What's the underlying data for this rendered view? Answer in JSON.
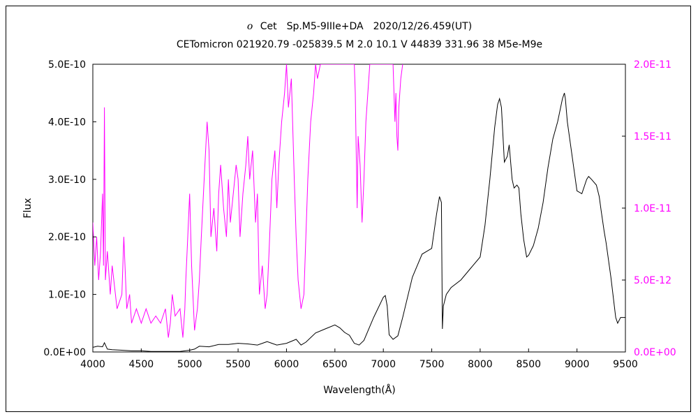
{
  "chart_data": {
    "type": "line",
    "title": "o Cet　Sp.M5-9IIIe+DA　2020/12/26.459(UT)",
    "title_symbol": "o",
    "title_rest": "Cet　Sp.M5-9IIIe+DA　2020/12/26.459(UT)",
    "subtitle": "CETomicron 021920.79 -025839.5 M 2.0 10.1 V 44839 331.96 38 M5e-M9e",
    "xlabel": "Wavelength(Å)",
    "ylabel": "Flux",
    "xlim": [
      4000,
      9500
    ],
    "ylim": [
      0,
      5e-10
    ],
    "y2lim": [
      0,
      2e-11
    ],
    "x_ticks": [
      "4000",
      "4500",
      "5000",
      "5500",
      "6000",
      "6500",
      "7000",
      "7500",
      "8000",
      "8500",
      "9000",
      "9500"
    ],
    "y_ticks": [
      "0.0E+00",
      "1.0E-10",
      "2.0E-10",
      "3.0E-10",
      "4.0E-10",
      "5.0E-10"
    ],
    "y2_ticks": [
      "0.0E+00",
      "5.0E-12",
      "1.0E-11",
      "1.5E-11",
      "2.0E-11"
    ],
    "grid": false,
    "legend": "none",
    "colors": {
      "left_series": "#000000",
      "right_series": "#ff00ff",
      "right_axis": "#ff00ff"
    },
    "series": [
      {
        "axis": "left",
        "color": "#000000",
        "x": [
          4000,
          4050,
          4100,
          4120,
          4150,
          4200,
          4300,
          4400,
          4500,
          4600,
          4700,
          4800,
          4900,
          5000,
          5050,
          5100,
          5200,
          5300,
          5400,
          5500,
          5600,
          5700,
          5800,
          5850,
          5900,
          6000,
          6100,
          6150,
          6200,
          6300,
          6400,
          6500,
          6550,
          6600,
          6650,
          6700,
          6750,
          6800,
          6900,
          7000,
          7020,
          7040,
          7060,
          7100,
          7150,
          7200,
          7300,
          7400,
          7450,
          7500,
          7550,
          7580,
          7600,
          7610,
          7620,
          7650,
          7700,
          7800,
          7900,
          8000,
          8050,
          8100,
          8150,
          8180,
          8200,
          8220,
          8250,
          8280,
          8300,
          8330,
          8350,
          8380,
          8400,
          8420,
          8450,
          8480,
          8500,
          8550,
          8600,
          8650,
          8700,
          8750,
          8800,
          8850,
          8870,
          8880,
          8900,
          8950,
          9000,
          9050,
          9100,
          9120,
          9150,
          9200,
          9230,
          9250,
          9280,
          9300,
          9350,
          9400,
          9420,
          9450,
          9500
        ],
        "y": [
          8e-12,
          1e-11,
          9e-12,
          1.6e-11,
          5e-12,
          4e-12,
          3e-12,
          2e-12,
          2e-12,
          1e-12,
          1e-12,
          1e-12,
          1e-12,
          3e-12,
          5e-12,
          1e-11,
          9e-12,
          1.3e-11,
          1.3e-11,
          1.5e-11,
          1.4e-11,
          1.2e-11,
          1.8e-11,
          1.5e-11,
          1.2e-11,
          1.5e-11,
          2.2e-11,
          1.2e-11,
          1.7e-11,
          3.3e-11,
          4e-11,
          4.7e-11,
          4.2e-11,
          3.4e-11,
          2.9e-11,
          1.5e-11,
          1.2e-11,
          2e-11,
          6e-11,
          9.5e-11,
          9.8e-11,
          8e-11,
          3e-11,
          2.2e-11,
          2.8e-11,
          6e-11,
          1.3e-10,
          1.7e-10,
          1.75e-10,
          1.8e-10,
          2.4e-10,
          2.7e-10,
          2.6e-10,
          4e-11,
          8e-11,
          1e-10,
          1.12e-10,
          1.25e-10,
          1.45e-10,
          1.65e-10,
          2.2e-10,
          3e-10,
          3.9e-10,
          4.3e-10,
          4.4e-10,
          4.25e-10,
          3.3e-10,
          3.4e-10,
          3.6e-10,
          3e-10,
          2.85e-10,
          2.9e-10,
          2.85e-10,
          2.4e-10,
          1.95e-10,
          1.65e-10,
          1.68e-10,
          1.85e-10,
          2.15e-10,
          2.6e-10,
          3.2e-10,
          3.7e-10,
          4e-10,
          4.4e-10,
          4.5e-10,
          4.4e-10,
          4e-10,
          3.4e-10,
          2.8e-10,
          2.75e-10,
          3e-10,
          3.05e-10,
          3e-10,
          2.9e-10,
          2.7e-10,
          2.45e-10,
          2.1e-10,
          1.9e-10,
          1.3e-10,
          6e-11,
          5e-11,
          6e-11,
          6e-11
        ]
      },
      {
        "axis": "right",
        "color": "#ff00ff",
        "x": [
          4000,
          4020,
          4040,
          4060,
          4080,
          4100,
          4110,
          4120,
          4130,
          4150,
          4180,
          4200,
          4250,
          4300,
          4320,
          4350,
          4380,
          4400,
          4450,
          4500,
          4550,
          4600,
          4650,
          4700,
          4750,
          4780,
          4800,
          4820,
          4850,
          4900,
          4930,
          4950,
          4960,
          4980,
          5000,
          5020,
          5050,
          5080,
          5100,
          5120,
          5150,
          5180,
          5200,
          5220,
          5250,
          5280,
          5300,
          5320,
          5350,
          5380,
          5400,
          5420,
          5450,
          5480,
          5500,
          5520,
          5550,
          5580,
          5600,
          5620,
          5650,
          5680,
          5700,
          5720,
          5750,
          5780,
          5800,
          5820,
          5850,
          5880,
          5900,
          5920,
          5950,
          5980,
          6000,
          6020,
          6050,
          6080,
          6100,
          6120,
          6150,
          6180,
          6200,
          6220,
          6250,
          6280,
          6300,
          6320,
          6350,
          6380,
          6400,
          6450,
          6500,
          6550,
          6600,
          6650,
          6680,
          6700,
          6710,
          6720,
          6730,
          6740,
          6760,
          6780,
          6800,
          6820,
          6840,
          6860,
          6880,
          6900,
          6950,
          7000,
          7050,
          7100,
          7120,
          7130,
          7140,
          7150,
          7160,
          7180,
          7200
        ],
        "y": [
          9e-12,
          6e-12,
          8e-12,
          5e-12,
          7e-12,
          1.1e-11,
          6e-12,
          1.7e-11,
          5e-12,
          7e-12,
          4e-12,
          6e-12,
          3e-12,
          4e-12,
          8e-12,
          3e-12,
          4e-12,
          2e-12,
          3e-12,
          2e-12,
          3e-12,
          2e-12,
          2.5e-12,
          2e-12,
          3e-12,
          1e-12,
          2e-12,
          4e-12,
          2.5e-12,
          3e-12,
          1e-12,
          3e-12,
          5e-12,
          8e-12,
          1.1e-11,
          6e-12,
          1.5e-12,
          3e-12,
          5e-12,
          8e-12,
          1.2e-11,
          1.6e-11,
          1.4e-11,
          8e-12,
          1e-11,
          7e-12,
          1.1e-11,
          1.3e-11,
          1e-11,
          8e-12,
          1.2e-11,
          9e-12,
          1.1e-11,
          1.3e-11,
          1.2e-11,
          8e-12,
          1.1e-11,
          1.3e-11,
          1.5e-11,
          1.2e-11,
          1.4e-11,
          9e-12,
          1.1e-11,
          4e-12,
          6e-12,
          3e-12,
          4e-12,
          7e-12,
          1.2e-11,
          1.4e-11,
          1e-11,
          1.3e-11,
          1.6e-11,
          1.8e-11,
          2e-11,
          1.7e-11,
          1.9e-11,
          1.2e-11,
          8e-12,
          5e-12,
          3e-12,
          4e-12,
          8e-12,
          1.2e-11,
          1.6e-11,
          1.8e-11,
          2e-11,
          1.9e-11,
          2e-11,
          2e-11,
          2e-11,
          2e-11,
          2e-11,
          2e-11,
          2e-11,
          2e-11,
          2e-11,
          2e-11,
          1.8e-11,
          1.4e-11,
          1e-11,
          1.5e-11,
          1.3e-11,
          9e-12,
          1.2e-11,
          1.6e-11,
          1.8e-11,
          2e-11,
          2e-11,
          2e-11,
          2e-11,
          2e-11,
          2e-11,
          2e-11,
          1.6e-11,
          1.8e-11,
          1.5e-11,
          1.4e-11,
          1.7e-11,
          1.9e-11,
          2e-11
        ]
      }
    ]
  }
}
